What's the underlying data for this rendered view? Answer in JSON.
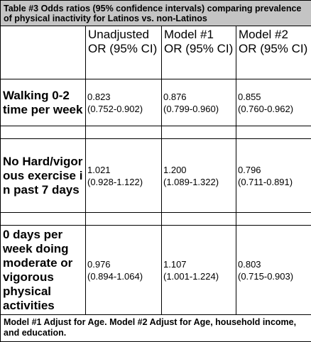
{
  "caption": "Table #3 Odds ratios (95% confidence intervals) comparing prevalence of physical inactivity for Latinos vs. non-Latinos",
  "columns": [
    "Unadjusted OR (95% CI)",
    "Model #1 OR (95% CI)",
    "Model #2 OR (95% CI)"
  ],
  "rows": [
    {
      "label": "Walking 0-2 time per week",
      "values": [
        {
          "or": "0.823",
          "ci": "(0.752-0.902)"
        },
        {
          "or": "0.876",
          "ci": "(0.799-0.960)"
        },
        {
          "or": "0.855",
          "ci": "(0.760-0.962)"
        }
      ]
    },
    {
      "label": "No Hard/vigorous exercise in past 7 days",
      "values": [
        {
          "or": "1.021",
          "ci": "(0.928-1.122)"
        },
        {
          "or": "1.200",
          "ci": "(1.089-1.322)"
        },
        {
          "or": "0.796",
          "ci": "(0.711-0.891)"
        }
      ]
    },
    {
      "label": "0 days per week doing moderate or vigorous physical activities",
      "values": [
        {
          "or": "0.976",
          "ci": "(0.894-1.064)"
        },
        {
          "or": "1.107",
          "ci": "(1.001-1.224)"
        },
        {
          "or": "0.803",
          "ci": "(0.715-0.903)"
        }
      ]
    }
  ],
  "footnote": "Model #1 Adjust for Age. Model #2 Adjust for Age, household income, and education."
}
